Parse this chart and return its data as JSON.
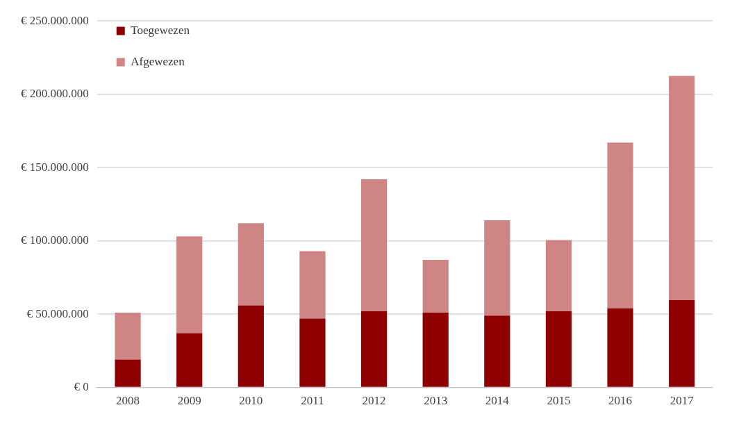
{
  "chart_data": {
    "type": "bar",
    "stacked": true,
    "categories": [
      "2008",
      "2009",
      "2010",
      "2011",
      "2012",
      "2013",
      "2014",
      "2015",
      "2016",
      "2017"
    ],
    "series": [
      {
        "name": "Toegewezen",
        "color": "#8f0000",
        "values": [
          19000000,
          37000000,
          56000000,
          47000000,
          52000000,
          51000000,
          49000000,
          52000000,
          54000000,
          59500000
        ]
      },
      {
        "name": "Afgewezen",
        "color": "#d08585",
        "values": [
          32000000,
          66000000,
          56000000,
          46000000,
          90000000,
          36000000,
          65000000,
          48500000,
          113000000,
          153000000
        ]
      }
    ],
    "ylim": [
      0,
      250000000
    ],
    "yticks": [
      {
        "value": 0,
        "label": "€ 0"
      },
      {
        "value": 50000000,
        "label": "€ 50.000.000"
      },
      {
        "value": 100000000,
        "label": "€ 100.000.000"
      },
      {
        "value": 150000000,
        "label": "€ 150.000.000"
      },
      {
        "value": 200000000,
        "label": "€ 200.000.000"
      },
      {
        "value": 250000000,
        "label": "€ 250.000.000"
      }
    ],
    "grid": "y",
    "legend": "top left"
  }
}
